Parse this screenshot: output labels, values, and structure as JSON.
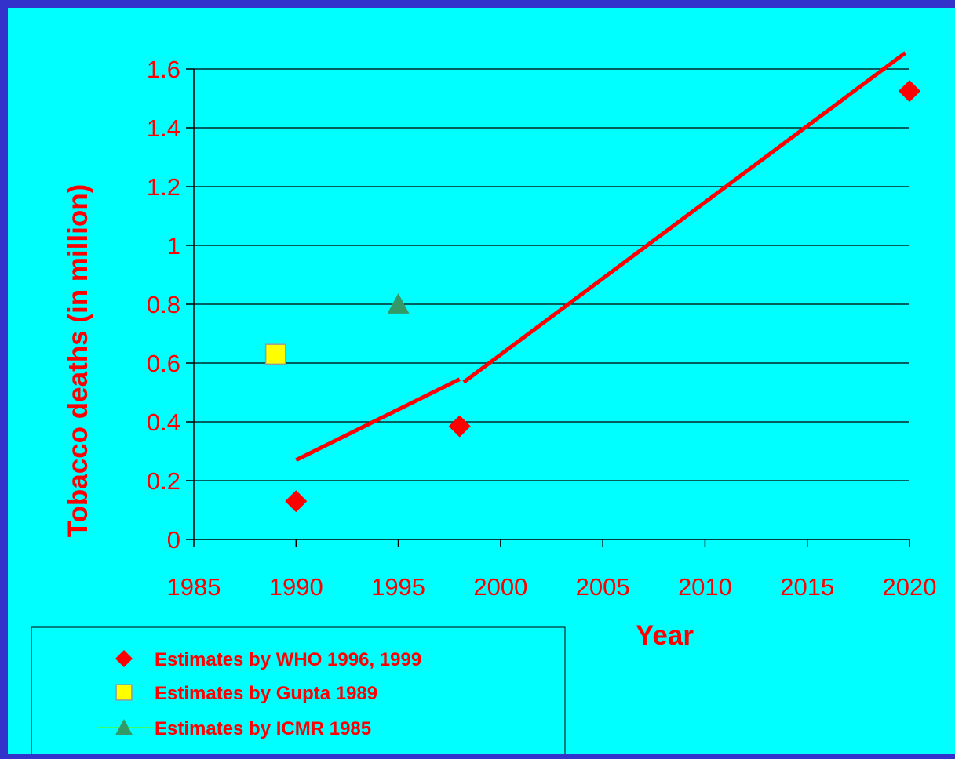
{
  "chart_data": {
    "type": "scatter",
    "xlabel": "Year",
    "ylabel": "Tobacco deaths (in million)",
    "xlim": [
      1985,
      2020
    ],
    "ylim": [
      0,
      1.6
    ],
    "x_ticks": [
      1985,
      1990,
      1995,
      2000,
      2005,
      2010,
      2015,
      2020
    ],
    "y_ticks": [
      0,
      0.2,
      0.4,
      0.6,
      0.8,
      1,
      1.2,
      1.4,
      1.6
    ],
    "y_tick_labels": [
      "0",
      "0.2",
      "0.4",
      "0.6",
      "0.8",
      "1",
      "1.2",
      "1.4",
      "1.6"
    ],
    "grid": "horizontal",
    "legend_position": "bottom-left",
    "series": [
      {
        "name": "Estimates by WHO 1996, 1999",
        "marker": "diamond",
        "color": "#ff0000",
        "x": [
          1990,
          1998,
          2020
        ],
        "y": [
          0.13,
          0.385,
          1.525
        ]
      },
      {
        "name": "Estimates by Gupta 1989",
        "marker": "square",
        "color": "#ffff00",
        "x": [
          1989
        ],
        "y": [
          0.63
        ]
      },
      {
        "name": "Estimates by ICMR 1985",
        "marker": "triangle",
        "color": "#339966",
        "line_color": "#33ff66",
        "x": [
          1995
        ],
        "y": [
          0.8
        ]
      }
    ],
    "trend_line": {
      "color": "#ff0000",
      "segments": [
        {
          "x": [
            1990,
            1998
          ],
          "y": [
            0.27,
            0.545
          ]
        },
        {
          "x": [
            1998.2,
            2019.8
          ],
          "y": [
            0.535,
            1.655
          ]
        }
      ]
    }
  }
}
